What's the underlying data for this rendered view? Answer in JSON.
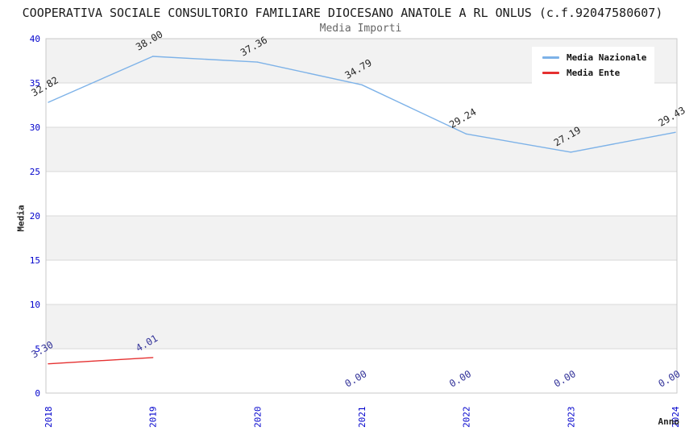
{
  "header": {
    "title": "COOPERATIVA SOCIALE CONSULTORIO FAMILIARE DIOCESANO ANATOLE A RL ONLUS (c.f.92047580607)",
    "subtitle": "Media Importi"
  },
  "chart_data": {
    "type": "line",
    "x": [
      "2018",
      "2019",
      "2020",
      "2021",
      "2022",
      "2023",
      "2024"
    ],
    "xlabel": "Anno",
    "ylabel": "Media",
    "ylim": [
      0,
      40
    ],
    "ytick_step": 5,
    "yticks": [
      0,
      5,
      10,
      15,
      20,
      25,
      30,
      35,
      40
    ],
    "grid": "alternating-horizontal-bands",
    "legend_position": "top-right",
    "band_color": "#f2f2f2",
    "gridline_color": "#d8d8d8",
    "border_color": "#c9c9c9",
    "tick_label_color": "#0000cc",
    "series": [
      {
        "name": "Media Nazionale",
        "color": "#7db2e8",
        "label_color": "#262626",
        "values": [
          32.82,
          38.0,
          37.36,
          34.79,
          29.24,
          27.19,
          29.43
        ],
        "labels": [
          "32.82",
          "38.00",
          "37.36",
          "34.79",
          "29.24",
          "27.19",
          "29.43"
        ]
      },
      {
        "name": "Media Ente",
        "color": "#e53030",
        "label_color": "#333399",
        "values": [
          3.3,
          4.01,
          null,
          0.0,
          0.0,
          0.0,
          0.0
        ],
        "labels": [
          "3.30",
          "4.01",
          null,
          "0.00",
          "0.00",
          "0.00",
          "0.00"
        ]
      }
    ]
  }
}
